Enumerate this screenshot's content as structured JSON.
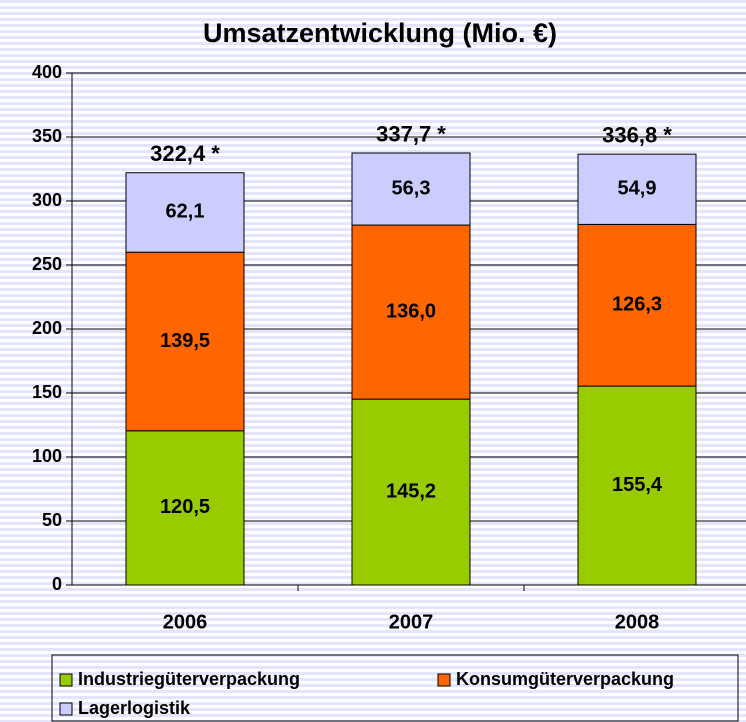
{
  "chart_data": {
    "type": "stacked_bar",
    "title": "Umsatzentwicklung (Mio. €)",
    "categories": [
      "2006",
      "2007",
      "2008"
    ],
    "series": [
      {
        "name": "Industriegüterverpackung",
        "color": "#99cc00",
        "values": [
          120.5,
          145.2,
          155.4
        ],
        "value_labels": [
          "120,5",
          "145,2",
          "155,4"
        ]
      },
      {
        "name": "Konsumgüterverpackung",
        "color": "#ff6600",
        "values": [
          139.5,
          136.0,
          126.3
        ],
        "value_labels": [
          "139,5",
          "136,0",
          "126,3"
        ]
      },
      {
        "name": "Lagerlogistik",
        "color": "#ccccff",
        "values": [
          62.1,
          56.3,
          54.9
        ],
        "value_labels": [
          "62,1",
          "56,3",
          "54,9"
        ]
      }
    ],
    "totals": [
      322.4,
      337.7,
      336.8
    ],
    "total_labels": [
      "322,4 *",
      "337,7 *",
      "336,8 *"
    ],
    "ylim": [
      0,
      400
    ],
    "yticks": [
      0,
      50,
      100,
      150,
      200,
      250,
      300,
      350,
      400
    ],
    "grid": true
  }
}
